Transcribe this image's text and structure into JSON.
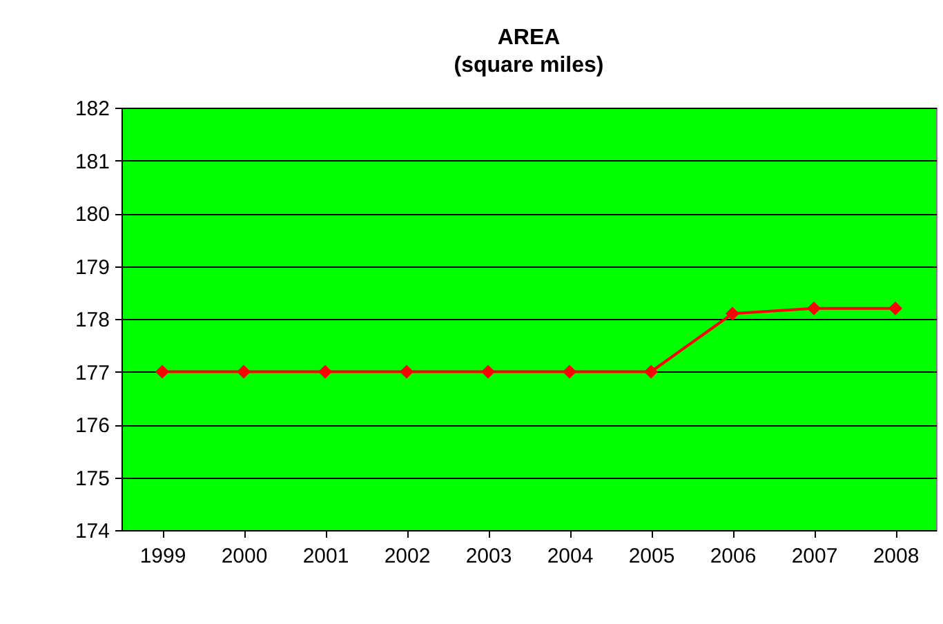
{
  "chart_data": {
    "type": "line",
    "title": "AREA",
    "subtitle": "(square miles)",
    "categories": [
      "1999",
      "2000",
      "2001",
      "2002",
      "2003",
      "2004",
      "2005",
      "2006",
      "2007",
      "2008"
    ],
    "series": [
      {
        "color": "#ff0000",
        "values": [
          177,
          177,
          177,
          177,
          177,
          177,
          177,
          178.1,
          178.2,
          178.2
        ]
      }
    ],
    "ylim": [
      174,
      182
    ],
    "yticks": [
      174,
      175,
      176,
      177,
      178,
      179,
      180,
      181,
      182
    ],
    "grid": "y",
    "marker": "diamond",
    "line_style": "solid"
  }
}
